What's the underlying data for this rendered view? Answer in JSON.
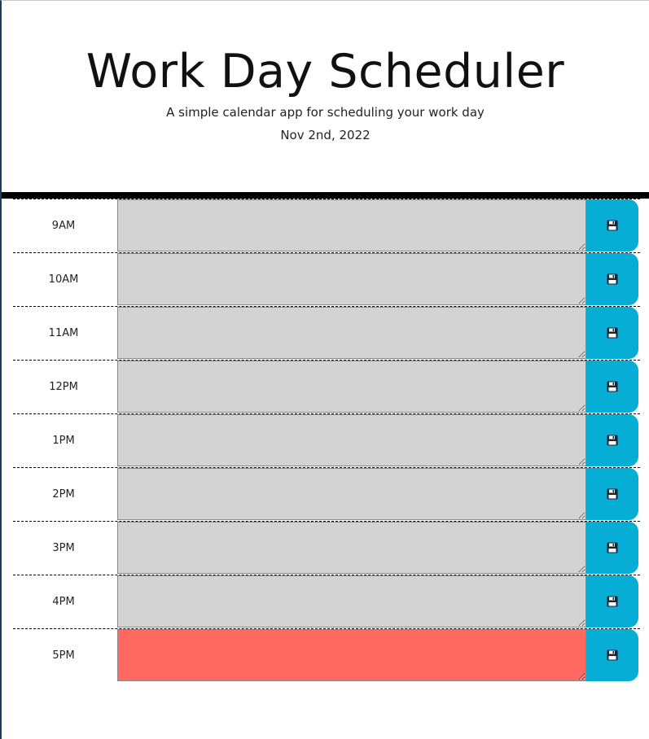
{
  "header": {
    "title": "Work Day Scheduler",
    "subtitle": "A simple calendar app for scheduling your work day",
    "current_date": "Nov 2nd, 2022"
  },
  "colors": {
    "past": "#d3d3d3",
    "present": "#ff6961",
    "save_button": "#06aed5"
  },
  "time_blocks": [
    {
      "hour": "9AM",
      "text": "",
      "state": "past"
    },
    {
      "hour": "10AM",
      "text": "",
      "state": "past"
    },
    {
      "hour": "11AM",
      "text": "",
      "state": "past"
    },
    {
      "hour": "12PM",
      "text": "",
      "state": "past"
    },
    {
      "hour": "1PM",
      "text": "",
      "state": "past"
    },
    {
      "hour": "2PM",
      "text": "",
      "state": "past"
    },
    {
      "hour": "3PM",
      "text": "",
      "state": "past"
    },
    {
      "hour": "4PM",
      "text": "",
      "state": "past"
    },
    {
      "hour": "5PM",
      "text": "",
      "state": "present"
    }
  ],
  "save_icon": "floppy-disk-icon"
}
